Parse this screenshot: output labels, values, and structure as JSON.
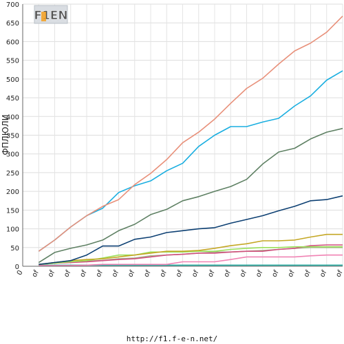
{
  "chart_data": {
    "type": "line",
    "ylabel": "ФПЛЮЛИ",
    "ylim": [
      0,
      700
    ],
    "yticks": [
      0,
      50,
      100,
      150,
      200,
      250,
      300,
      350,
      400,
      450,
      500,
      550,
      600,
      650,
      700
    ],
    "x_tick_labels": [
      "0",
      "of",
      "of",
      "of",
      "of",
      "of",
      "of",
      "of",
      "of",
      "of",
      "of",
      "of",
      "of",
      "of",
      "of",
      "of",
      "of",
      "of",
      "of",
      "of",
      "of"
    ],
    "grid": true,
    "series": [
      {
        "color": "#e8907a",
        "values": [
          40,
          70,
          105,
          135,
          160,
          178,
          218,
          248,
          285,
          330,
          358,
          393,
          435,
          475,
          502,
          540,
          575,
          596,
          625,
          668
        ]
      },
      {
        "color": "#19aee0",
        "values": [
          40,
          70,
          105,
          135,
          155,
          197,
          215,
          228,
          255,
          275,
          320,
          350,
          373,
          373,
          385,
          395,
          428,
          455,
          497,
          522
        ]
      },
      {
        "color": "#5e8063",
        "values": [
          10,
          37,
          48,
          57,
          70,
          95,
          112,
          138,
          152,
          175,
          186,
          200,
          213,
          232,
          273,
          305,
          315,
          340,
          358,
          368
        ]
      },
      {
        "color": "#0c3f72",
        "values": [
          5,
          10,
          15,
          30,
          54,
          54,
          72,
          78,
          90,
          95,
          100,
          103,
          115,
          125,
          135,
          148,
          160,
          175,
          178,
          188
        ]
      },
      {
        "color": "#c4a724",
        "values": [
          5,
          10,
          15,
          18,
          20,
          25,
          30,
          35,
          40,
          40,
          42,
          48,
          55,
          60,
          68,
          68,
          70,
          78,
          85,
          85
        ]
      },
      {
        "color": "#9ae05a",
        "values": [
          5,
          8,
          12,
          15,
          22,
          30,
          30,
          38,
          38,
          38,
          40,
          40,
          45,
          48,
          50,
          50,
          52,
          52,
          52,
          52
        ]
      },
      {
        "color": "#d04f7d",
        "values": [
          5,
          8,
          10,
          12,
          15,
          18,
          20,
          25,
          30,
          32,
          35,
          35,
          38,
          40,
          40,
          45,
          48,
          55,
          57,
          57
        ]
      },
      {
        "color": "#a7b48c",
        "values": [
          5,
          8,
          12,
          14,
          16,
          20,
          22,
          28,
          30,
          32,
          35,
          38,
          38,
          40,
          42,
          45,
          48,
          50,
          50,
          50
        ]
      },
      {
        "color": "#f082b3",
        "values": [
          2,
          2,
          2,
          3,
          5,
          5,
          5,
          5,
          5,
          12,
          12,
          12,
          18,
          25,
          25,
          25,
          25,
          28,
          30,
          30
        ]
      },
      {
        "color": "#1aa59a",
        "values": [
          3,
          3,
          3,
          3,
          3,
          3,
          3,
          3,
          3,
          3,
          3,
          3,
          3,
          3,
          3,
          3,
          3,
          3,
          3,
          3
        ]
      }
    ]
  },
  "logo": {
    "text": "F1EN"
  },
  "footer": {
    "url": "http://f1.f-e-n.net/"
  }
}
